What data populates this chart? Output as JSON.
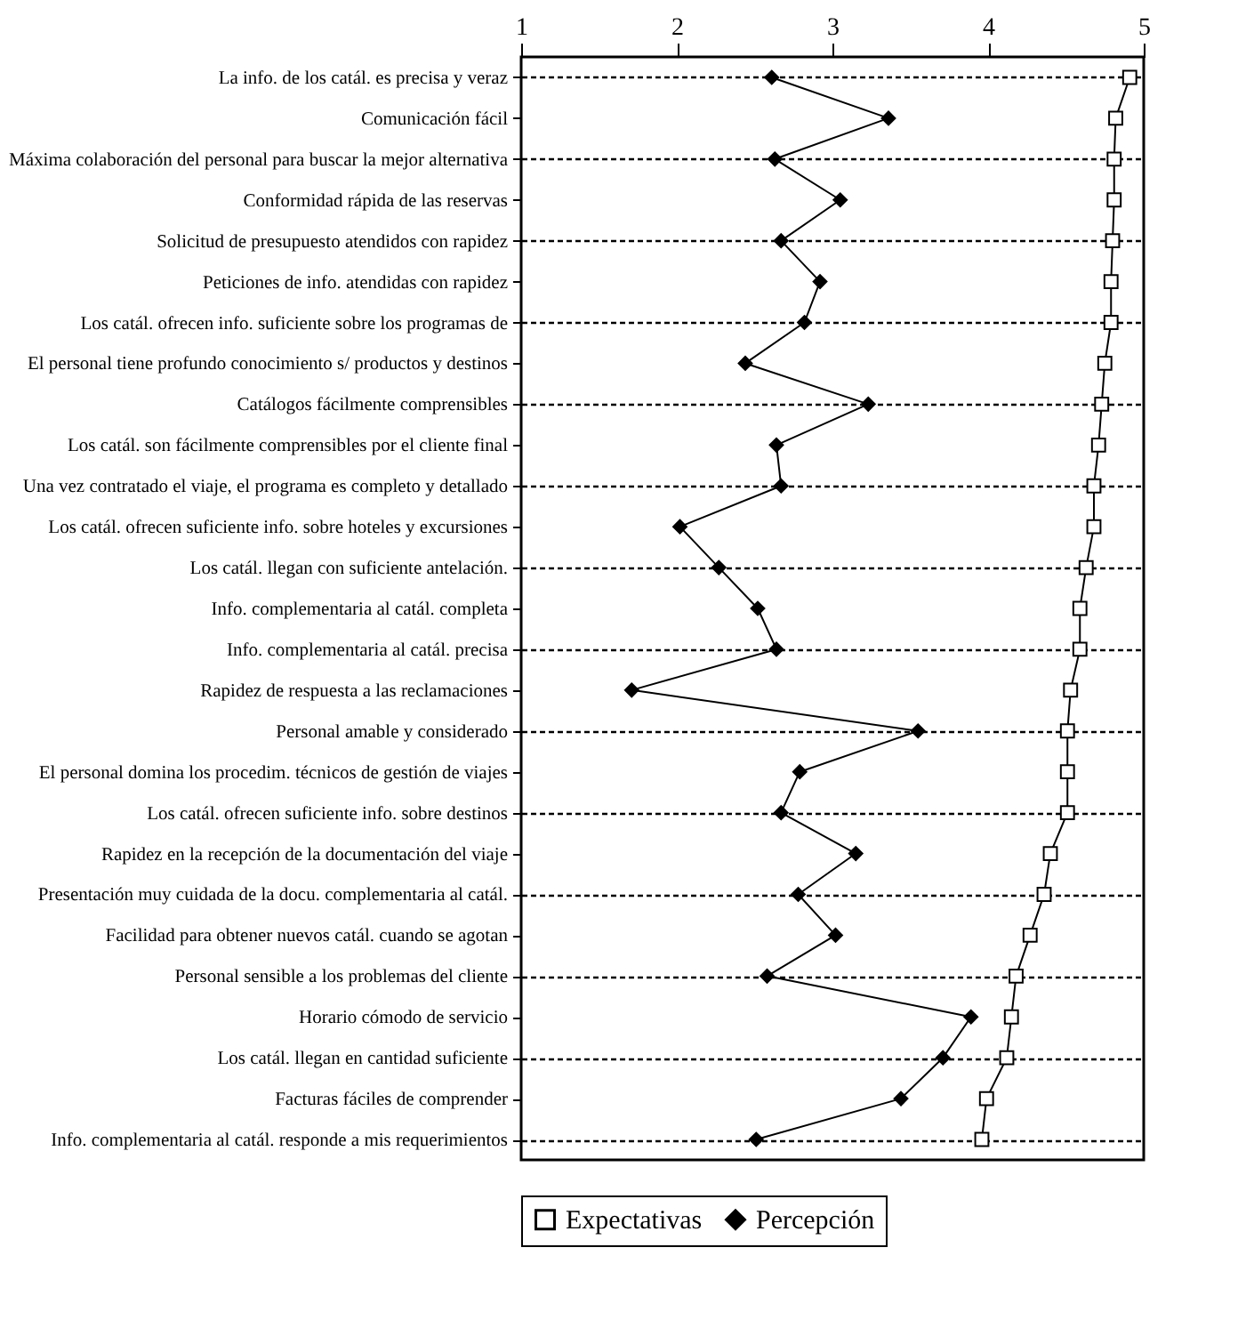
{
  "chart_data": {
    "type": "line",
    "orientation": "horizontal",
    "categories": [
      "La info. de los catál. es precisa y veraz",
      "Comunicación fácil",
      "Máxima colaboración del personal para buscar la mejor alternativa",
      "Conformidad rápida de las reservas",
      "Solicitud de presupuesto atendidos con rapidez",
      "Peticiones de info. atendidas con rapidez",
      "Los catál. ofrecen info. suficiente sobre los programas de",
      "El personal tiene profundo conocimiento s/ productos y destinos",
      "Catálogos fácilmente comprensibles",
      "Los catál. son fácilmente comprensibles por el cliente final",
      "Una vez contratado el viaje, el programa es completo y detallado",
      "Los catál. ofrecen suficiente info. sobre hoteles y excursiones",
      "Los catál. llegan con suficiente antelación.",
      "Info. complementaria al catál. completa",
      "Info. complementaria al catál. precisa",
      "Rapidez de respuesta a las reclamaciones",
      "Personal amable y considerado",
      "El personal domina los procedim. técnicos de gestión de viajes",
      "Los catál. ofrecen suficiente info. sobre destinos",
      "Rapidez en la recepción de la documentación del viaje",
      "Presentación muy cuidada de la docu. complementaria al catál.",
      "Facilidad para obtener nuevos catál. cuando se agotan",
      "Personal sensible a los problemas del cliente",
      "Horario cómodo de servicio",
      "Los catál. llegan  en cantidad suficiente",
      "Facturas fáciles de comprender",
      "Info. complementaria al catál. responde a mis requerimientos"
    ],
    "series": [
      {
        "name": "Expectativas",
        "color": "#000000",
        "marker": "square",
        "values": [
          4.91,
          4.82,
          4.81,
          4.81,
          4.8,
          4.79,
          4.79,
          4.75,
          4.73,
          4.71,
          4.68,
          4.68,
          4.63,
          4.59,
          4.59,
          4.53,
          4.51,
          4.51,
          4.51,
          4.4,
          4.36,
          4.27,
          4.18,
          4.15,
          4.12,
          3.99,
          3.96
        ]
      },
      {
        "name": "Percepción",
        "color": "#000000",
        "marker": "diamond",
        "values": [
          2.61,
          3.36,
          2.63,
          3.05,
          2.67,
          2.92,
          2.82,
          2.44,
          3.23,
          2.64,
          2.67,
          2.02,
          2.27,
          2.52,
          2.64,
          1.71,
          3.55,
          2.79,
          2.67,
          3.15,
          2.78,
          3.02,
          2.58,
          3.89,
          3.71,
          3.44,
          2.51
        ]
      }
    ],
    "xlim": [
      1,
      5
    ],
    "xticks": [
      1,
      2,
      3,
      4,
      5
    ],
    "grid": "y",
    "legend": "bottom",
    "line_style": "solid"
  }
}
